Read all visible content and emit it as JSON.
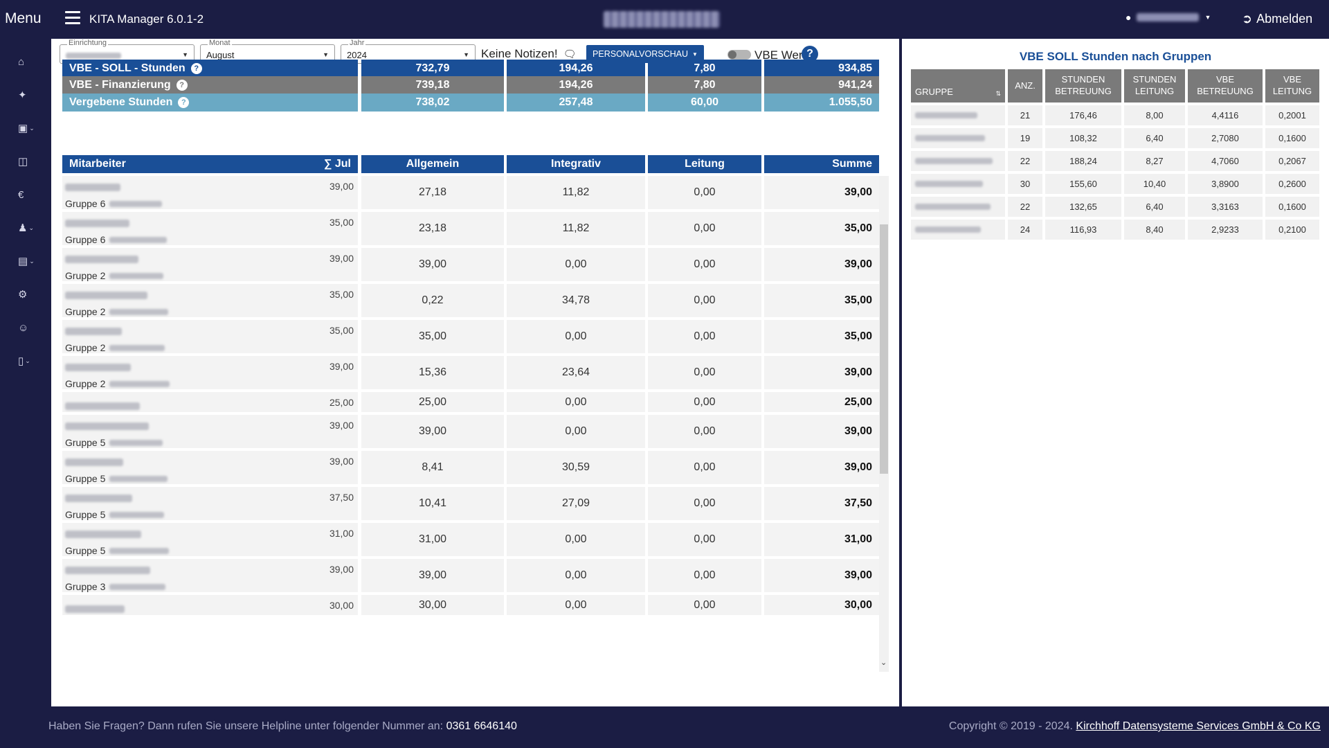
{
  "topbar": {
    "menu_label": "Menu",
    "app_title": "KITA Manager 6.0.1-2",
    "logout_label": "Abmelden"
  },
  "filters": {
    "einrichtung_label": "Einrichtung",
    "monat_label": "Monat",
    "monat_value": "August",
    "jahr_label": "Jahr",
    "jahr_value": "2024",
    "notes_text": "Keine Notizen!",
    "preview_button": "PERSONALVORSCHAU",
    "vbe_toggle_label": "VBE Werte",
    "help": "?"
  },
  "summary": [
    {
      "label": "VBE - SOLL - Stunden",
      "v1": "732,79",
      "v2": "194,26",
      "v3": "7,80",
      "v4": "934,85",
      "color": "#1a4f97"
    },
    {
      "label": "VBE - Finanzierung",
      "v1": "739,18",
      "v2": "194,26",
      "v3": "7,80",
      "v4": "941,24",
      "color": "#7a7a7a"
    },
    {
      "label": "Vergebene Stunden",
      "v1": "738,02",
      "v2": "257,48",
      "v3": "60,00",
      "v4": "1.055,50",
      "color": "#6aa9c4"
    }
  ],
  "table": {
    "headers": {
      "name": "Mitarbeiter",
      "sum": "∑ Jul",
      "allgemein": "Allgemein",
      "integrativ": "Integrativ",
      "leitung": "Leitung",
      "summe": "Summe"
    },
    "rows": [
      {
        "group": "Gruppe 6",
        "hours": "39,00",
        "allgemein": "27,18",
        "integrativ": "11,82",
        "leitung": "0,00",
        "summe": "39,00"
      },
      {
        "group": "Gruppe 6",
        "hours": "35,00",
        "allgemein": "23,18",
        "integrativ": "11,82",
        "leitung": "0,00",
        "summe": "35,00"
      },
      {
        "group": "Gruppe 2",
        "hours": "39,00",
        "allgemein": "39,00",
        "integrativ": "0,00",
        "leitung": "0,00",
        "summe": "39,00"
      },
      {
        "group": "Gruppe 2",
        "hours": "35,00",
        "allgemein": "0,22",
        "integrativ": "34,78",
        "leitung": "0,00",
        "summe": "35,00"
      },
      {
        "group": "Gruppe 2",
        "hours": "35,00",
        "allgemein": "35,00",
        "integrativ": "0,00",
        "leitung": "0,00",
        "summe": "35,00"
      },
      {
        "group": "Gruppe 2",
        "hours": "39,00",
        "allgemein": "15,36",
        "integrativ": "23,64",
        "leitung": "0,00",
        "summe": "39,00"
      },
      {
        "group": "",
        "hours": "25,00",
        "allgemein": "25,00",
        "integrativ": "0,00",
        "leitung": "0,00",
        "summe": "25,00"
      },
      {
        "group": "Gruppe 5",
        "hours": "39,00",
        "allgemein": "39,00",
        "integrativ": "0,00",
        "leitung": "0,00",
        "summe": "39,00"
      },
      {
        "group": "Gruppe 5",
        "hours": "39,00",
        "allgemein": "8,41",
        "integrativ": "30,59",
        "leitung": "0,00",
        "summe": "39,00"
      },
      {
        "group": "Gruppe 5",
        "hours": "37,50",
        "allgemein": "10,41",
        "integrativ": "27,09",
        "leitung": "0,00",
        "summe": "37,50"
      },
      {
        "group": "Gruppe 5",
        "hours": "31,00",
        "allgemein": "31,00",
        "integrativ": "0,00",
        "leitung": "0,00",
        "summe": "31,00"
      },
      {
        "group": "Gruppe 3",
        "hours": "39,00",
        "allgemein": "39,00",
        "integrativ": "0,00",
        "leitung": "0,00",
        "summe": "39,00"
      },
      {
        "group": "",
        "hours": "30,00",
        "allgemein": "30,00",
        "integrativ": "0,00",
        "leitung": "0,00",
        "summe": "30,00"
      }
    ]
  },
  "groups_panel": {
    "title": "VBE SOLL Stunden nach Gruppen",
    "headers": {
      "gruppe": "GRUPPE",
      "anz": "ANZ.",
      "stunden_betreuung": "STUNDEN BETREUUNG",
      "stunden_leitung": "STUNDEN LEITUNG",
      "vbe_betreuung": "VBE BETREUUNG",
      "vbe_leitung": "VBE LEITUNG"
    },
    "rows": [
      {
        "anz": "21",
        "sb": "176,46",
        "sl": "8,00",
        "vb": "4,4116",
        "vl": "0,2001"
      },
      {
        "anz": "19",
        "sb": "108,32",
        "sl": "6,40",
        "vb": "2,7080",
        "vl": "0,1600"
      },
      {
        "anz": "22",
        "sb": "188,24",
        "sl": "8,27",
        "vb": "4,7060",
        "vl": "0,2067"
      },
      {
        "anz": "30",
        "sb": "155,60",
        "sl": "10,40",
        "vb": "3,8900",
        "vl": "0,2600"
      },
      {
        "anz": "22",
        "sb": "132,65",
        "sl": "6,40",
        "vb": "3,3163",
        "vl": "0,1600"
      },
      {
        "anz": "24",
        "sb": "116,93",
        "sl": "8,40",
        "vb": "2,9233",
        "vl": "0,2100"
      }
    ]
  },
  "footer": {
    "help_text": "Haben Sie Fragen? Dann rufen Sie unsere Helpline unter folgender Nummer an:",
    "phone": "0361 6646140",
    "copyright": "Copyright © 2019 - 2024.",
    "company": "Kirchhoff Datensysteme Services GmbH & Co KG"
  }
}
